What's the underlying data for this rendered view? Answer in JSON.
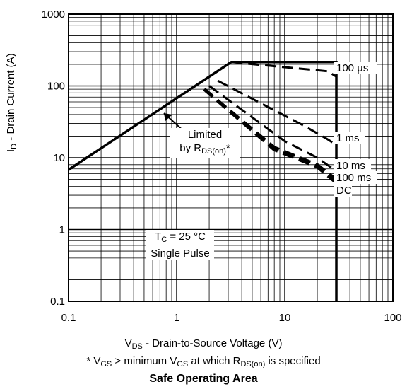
{
  "chart_data": {
    "type": "line",
    "title": "Safe Operating Area",
    "xscale": "log",
    "yscale": "log",
    "xlim": [
      0.1,
      100
    ],
    "ylim": [
      0.1,
      1000
    ],
    "xticks": [
      "0.1",
      "1",
      "10",
      "100"
    ],
    "yticks": [
      "0.1",
      "1",
      "10",
      "100",
      "1000"
    ],
    "xlabel": {
      "main": "V",
      "sub": "DS",
      "rest": " - Drain-to-Source Voltage (V)"
    },
    "ylabel": {
      "main": "I",
      "sub": "D",
      "rest": " - Drain Current (A)"
    },
    "grid": true,
    "footnote": {
      "p1": "* V",
      "s1": "GS",
      "p2": " > minimum V",
      "s2": "GS",
      "p3": " at which R",
      "s3": "DS(on)",
      "p4": " is specified"
    },
    "annotations": {
      "limited_line1": "Limited",
      "limited_line2": "by R",
      "limited_sub": "DS(on)",
      "limited_suffix": "*",
      "tc_main": "T",
      "tc_sub": "C",
      "tc_rest": " = 25 °C",
      "pulse": "Single Pulse"
    },
    "rds_limit": {
      "x": [
        0.1,
        3.2
      ],
      "y": [
        6.8,
        215
      ]
    },
    "breakdown_voltage": 30,
    "series": [
      {
        "name": "100 µs",
        "style": "dashed",
        "x": [
          3.2,
          25,
          30
        ],
        "y": [
          215,
          160,
          135
        ]
      },
      {
        "name": "1 ms",
        "style": "dashed",
        "x": [
          2.4,
          15,
          25,
          30
        ],
        "y": [
          118,
          28,
          18,
          15
        ]
      },
      {
        "name": "10 ms",
        "style": "dashed",
        "x": [
          2.0,
          10,
          20,
          30
        ],
        "y": [
          100,
          17,
          10,
          6.5
        ]
      },
      {
        "name": "100 ms",
        "style": "dashed",
        "x": [
          1.8,
          8,
          20,
          30
        ],
        "y": [
          90,
          14,
          8,
          5
        ]
      },
      {
        "name": "DC",
        "style": "dashed",
        "x": [
          1.8,
          8,
          20,
          30
        ],
        "y": [
          90,
          13,
          7.5,
          4.5
        ]
      }
    ],
    "envelope": {
      "x": [
        0.1,
        3.2,
        30,
        30
      ],
      "y": [
        6.8,
        215,
        215,
        0.1
      ]
    }
  }
}
